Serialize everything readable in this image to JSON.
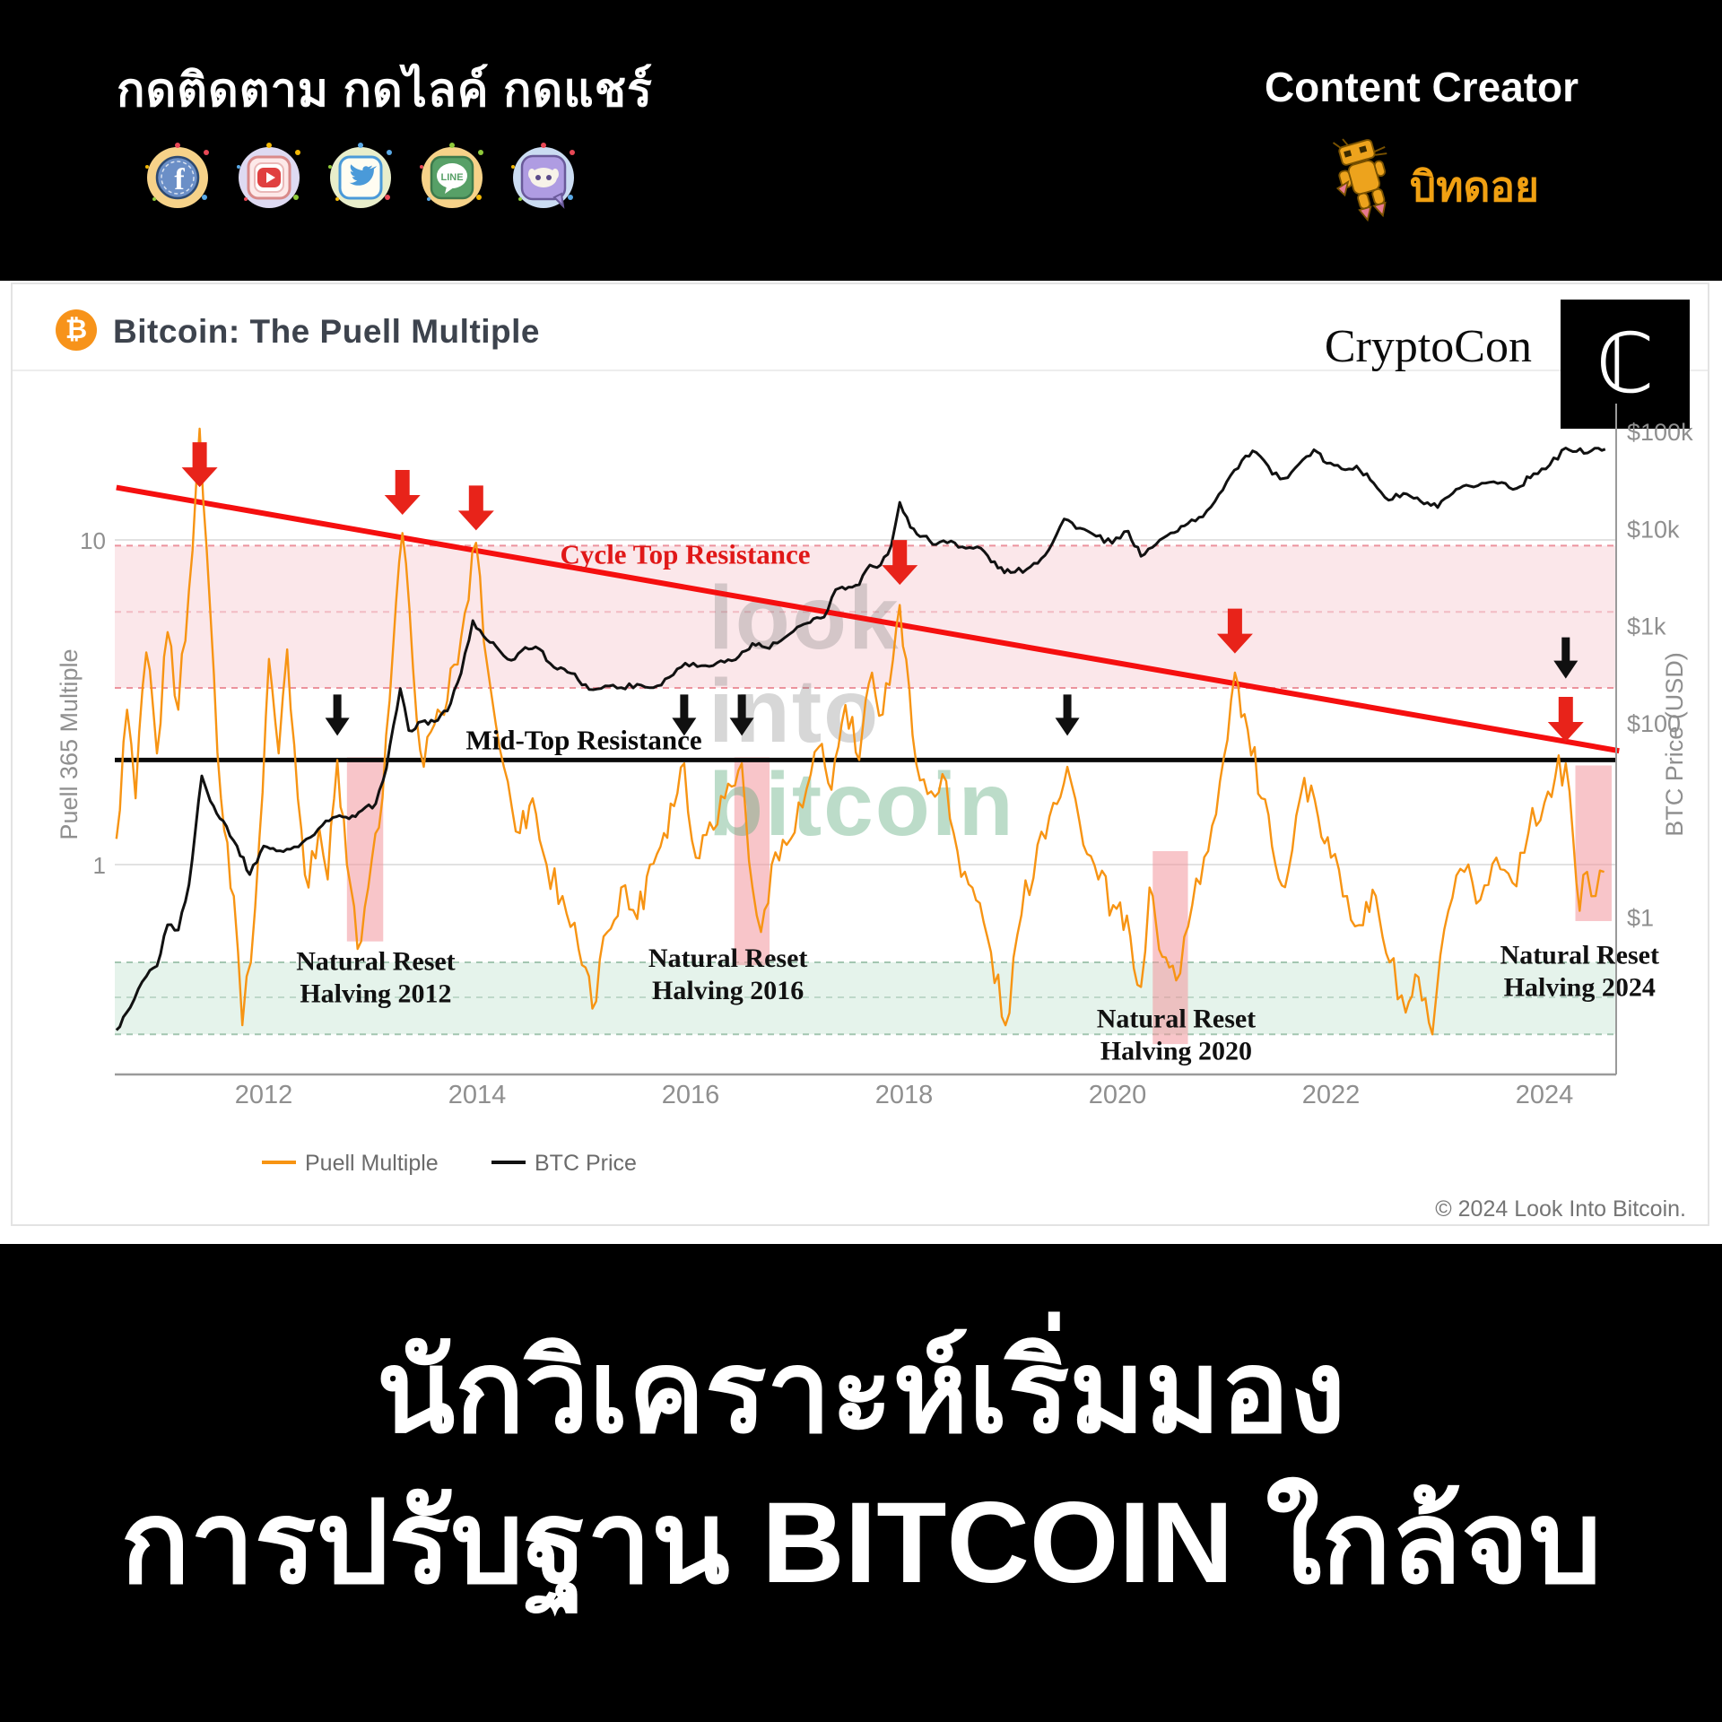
{
  "header": {
    "follow_text": "กดติดตาม กดไลค์ กดแชร์",
    "creator_label": "Content Creator",
    "creator_name": "บิทดอย",
    "social_icons": [
      {
        "name": "facebook-icon",
        "outer": "#f6d289",
        "accent": "#6b8fc7"
      },
      {
        "name": "youtube-icon",
        "outer": "#dedaf2",
        "accent": "#e04040"
      },
      {
        "name": "twitter-icon",
        "outer": "#e9eecb",
        "accent": "#4a9ad9"
      },
      {
        "name": "line-icon",
        "outer": "#f6d289",
        "accent": "#57a067"
      },
      {
        "name": "discord-icon",
        "outer": "#cbdcf2",
        "accent": "#af9ce2"
      }
    ]
  },
  "card": {
    "title": "Bitcoin: The Puell Multiple",
    "title_badge": "₿",
    "brand": "CryptoCon",
    "brand_glyph": "ℂ",
    "copyright": "© 2024 Look Into Bitcoin.",
    "watermark": [
      "look",
      "into",
      "bitcoin"
    ]
  },
  "footer": {
    "line1": "นักวิเคราะห์เริ่มมอง",
    "line2": "การปรับฐาน BITCOIN ใกล้จบ"
  },
  "chart_data": {
    "type": "line",
    "title": "Bitcoin: The Puell Multiple",
    "x_axis": {
      "ticks": [
        "2012",
        "2014",
        "2016",
        "2018",
        "2020",
        "2022",
        "2024"
      ],
      "range_years": [
        2010.6,
        2024.75
      ]
    },
    "y_left": {
      "label": "Puell 365 Multiple",
      "scale": "log",
      "ticks": [
        {
          "text": "10",
          "value": 10
        },
        {
          "text": "1",
          "value": 1
        }
      ]
    },
    "y_right": {
      "label": "BTC Price (USD)",
      "scale": "log",
      "ticks": [
        {
          "text": "$100k",
          "value": 100000
        },
        {
          "text": "$10k",
          "value": 10000
        },
        {
          "text": "$1k",
          "value": 1000
        },
        {
          "text": "$100",
          "value": 100
        },
        {
          "text": "$1",
          "value": 1
        }
      ]
    },
    "legend": [
      {
        "name": "Puell Multiple",
        "color": "#f79413"
      },
      {
        "name": "BTC Price",
        "color": "#111111"
      }
    ],
    "grid_values": [
      10,
      1
    ],
    "zones": {
      "cycle_top": {
        "label": "Cycle Top Resistance",
        "color": "#e01818",
        "band": [
          3.5,
          9.6
        ],
        "mid": 6.0,
        "label_anchor": {
          "year": 2015.95,
          "value": 9.0
        }
      },
      "mid_top": {
        "label": "Mid-Top Resistance",
        "value": 2.1,
        "label_anchor": {
          "year": 2015.0,
          "value": 2.35
        }
      },
      "bottom": {
        "band": [
          0.3,
          0.5
        ],
        "mid": 0.39
      }
    },
    "trendline": {
      "color": "#f50f0f",
      "from": {
        "year": 2010.62,
        "value": 14.5
      },
      "to": {
        "year": 2024.7,
        "value": 2.24
      }
    },
    "halvings": [
      {
        "lines": [
          "Natural Reset",
          "Halving 2012"
        ],
        "years": [
          2012.78,
          2013.12
        ],
        "values": [
          2.14,
          0.58
        ],
        "label": {
          "year": 2013.05,
          "value": 0.45
        }
      },
      {
        "lines": [
          "Natural Reset",
          "Halving 2016"
        ],
        "years": [
          2016.41,
          2016.74
        ],
        "values": [
          2.14,
          0.49
        ],
        "label": {
          "year": 2016.35,
          "value": 0.46
        }
      },
      {
        "lines": [
          "Natural Reset",
          "Halving 2020"
        ],
        "years": [
          2020.33,
          2020.66
        ],
        "values": [
          1.1,
          0.28
        ],
        "label": {
          "year": 2020.55,
          "value": 0.3
        }
      },
      {
        "lines": [
          "Natural Reset",
          "Halving 2024"
        ],
        "years": [
          2024.29,
          2024.63
        ],
        "values": [
          2.02,
          0.67
        ],
        "label": {
          "year": 2024.33,
          "value": 0.47
        }
      }
    ],
    "red_arrows": [
      {
        "year": 2011.4,
        "value": 14.0
      },
      {
        "year": 2013.3,
        "value": 11.5
      },
      {
        "year": 2013.99,
        "value": 10.3
      },
      {
        "year": 2017.96,
        "value": 7.0
      },
      {
        "year": 2021.1,
        "value": 4.3
      },
      {
        "year": 2024.2,
        "value": 2.3
      }
    ],
    "black_arrows": [
      {
        "year": 2012.69,
        "value": 2.4
      },
      {
        "year": 2015.94,
        "value": 2.4
      },
      {
        "year": 2016.48,
        "value": 2.4
      },
      {
        "year": 2019.53,
        "value": 2.4
      },
      {
        "year": 2024.2,
        "value": 3.6
      }
    ],
    "series": [
      {
        "name": "Puell Multiple",
        "color": "#f79413",
        "width": 2.4,
        "noise": 0.055,
        "axis": "left",
        "points": [
          [
            2010.62,
            1.2
          ],
          [
            2010.72,
            3.0
          ],
          [
            2010.8,
            1.6
          ],
          [
            2010.9,
            4.5
          ],
          [
            2011.0,
            2.2
          ],
          [
            2011.1,
            5.2
          ],
          [
            2011.2,
            3.0
          ],
          [
            2011.3,
            7.0
          ],
          [
            2011.4,
            22
          ],
          [
            2011.5,
            6.0
          ],
          [
            2011.6,
            1.6
          ],
          [
            2011.72,
            0.8
          ],
          [
            2011.8,
            0.32
          ],
          [
            2011.88,
            0.5
          ],
          [
            2011.96,
            1.2
          ],
          [
            2012.05,
            4.3
          ],
          [
            2012.14,
            2.2
          ],
          [
            2012.22,
            4.6
          ],
          [
            2012.32,
            1.6
          ],
          [
            2012.42,
            0.85
          ],
          [
            2012.52,
            1.3
          ],
          [
            2012.6,
            0.9
          ],
          [
            2012.69,
            2.1
          ],
          [
            2012.78,
            1.0
          ],
          [
            2012.88,
            0.55
          ],
          [
            2012.98,
            0.85
          ],
          [
            2013.08,
            1.3
          ],
          [
            2013.18,
            3.2
          ],
          [
            2013.3,
            10.5
          ],
          [
            2013.4,
            4.0
          ],
          [
            2013.5,
            2.0
          ],
          [
            2013.6,
            2.7
          ],
          [
            2013.72,
            3.2
          ],
          [
            2013.85,
            5.0
          ],
          [
            2013.99,
            9.8
          ],
          [
            2014.1,
            4.0
          ],
          [
            2014.25,
            2.0
          ],
          [
            2014.4,
            1.25
          ],
          [
            2014.52,
            1.6
          ],
          [
            2014.65,
            1.0
          ],
          [
            2014.8,
            0.8
          ],
          [
            2014.95,
            0.55
          ],
          [
            2015.08,
            0.36
          ],
          [
            2015.22,
            0.62
          ],
          [
            2015.35,
            0.85
          ],
          [
            2015.5,
            0.68
          ],
          [
            2015.62,
            1.0
          ],
          [
            2015.75,
            1.25
          ],
          [
            2015.94,
            2.05
          ],
          [
            2016.05,
            1.05
          ],
          [
            2016.18,
            1.35
          ],
          [
            2016.32,
            1.6
          ],
          [
            2016.48,
            2.05
          ],
          [
            2016.58,
            0.85
          ],
          [
            2016.66,
            0.62
          ],
          [
            2016.76,
            1.0
          ],
          [
            2016.9,
            1.15
          ],
          [
            2017.05,
            1.5
          ],
          [
            2017.2,
            2.3
          ],
          [
            2017.32,
            1.7
          ],
          [
            2017.45,
            3.1
          ],
          [
            2017.58,
            2.1
          ],
          [
            2017.7,
            3.9
          ],
          [
            2017.8,
            2.9
          ],
          [
            2017.96,
            6.3
          ],
          [
            2018.08,
            2.5
          ],
          [
            2018.22,
            1.65
          ],
          [
            2018.36,
            1.9
          ],
          [
            2018.5,
            1.1
          ],
          [
            2018.64,
            0.85
          ],
          [
            2018.78,
            0.6
          ],
          [
            2018.95,
            0.32
          ],
          [
            2019.1,
            0.7
          ],
          [
            2019.25,
            1.15
          ],
          [
            2019.4,
            1.55
          ],
          [
            2019.53,
            2.0
          ],
          [
            2019.68,
            1.15
          ],
          [
            2019.82,
            0.9
          ],
          [
            2019.96,
            0.75
          ],
          [
            2020.12,
            0.6
          ],
          [
            2020.22,
            0.42
          ],
          [
            2020.3,
            0.85
          ],
          [
            2020.42,
            0.52
          ],
          [
            2020.55,
            0.44
          ],
          [
            2020.7,
            0.75
          ],
          [
            2020.85,
            1.1
          ],
          [
            2020.96,
            1.8
          ],
          [
            2021.1,
            3.9
          ],
          [
            2021.22,
            2.6
          ],
          [
            2021.35,
            1.6
          ],
          [
            2021.48,
            1.0
          ],
          [
            2021.6,
            0.95
          ],
          [
            2021.75,
            1.85
          ],
          [
            2021.88,
            1.4
          ],
          [
            2022.0,
            1.05
          ],
          [
            2022.15,
            0.8
          ],
          [
            2022.3,
            0.65
          ],
          [
            2022.42,
            0.8
          ],
          [
            2022.55,
            0.5
          ],
          [
            2022.7,
            0.35
          ],
          [
            2022.82,
            0.45
          ],
          [
            2022.95,
            0.3
          ],
          [
            2023.1,
            0.72
          ],
          [
            2023.25,
            0.95
          ],
          [
            2023.4,
            0.78
          ],
          [
            2023.55,
            1.05
          ],
          [
            2023.7,
            0.88
          ],
          [
            2023.85,
            1.25
          ],
          [
            2024.0,
            1.55
          ],
          [
            2024.1,
            1.85
          ],
          [
            2024.2,
            2.05
          ],
          [
            2024.27,
            1.2
          ],
          [
            2024.33,
            0.72
          ],
          [
            2024.4,
            0.95
          ],
          [
            2024.48,
            0.8
          ],
          [
            2024.56,
            0.95
          ]
        ]
      },
      {
        "name": "BTC Price",
        "color": "#111111",
        "width": 3,
        "noise": 0.03,
        "axis": "right",
        "points": [
          [
            2010.62,
            0.07
          ],
          [
            2010.75,
            0.12
          ],
          [
            2010.9,
            0.25
          ],
          [
            2011.0,
            0.32
          ],
          [
            2011.1,
            0.85
          ],
          [
            2011.2,
            0.75
          ],
          [
            2011.3,
            2.2
          ],
          [
            2011.42,
            29
          ],
          [
            2011.5,
            16
          ],
          [
            2011.62,
            10
          ],
          [
            2011.75,
            5.5
          ],
          [
            2011.87,
            2.8
          ],
          [
            2012.0,
            5.5
          ],
          [
            2012.12,
            4.9
          ],
          [
            2012.25,
            5.1
          ],
          [
            2012.4,
            6.5
          ],
          [
            2012.55,
            9
          ],
          [
            2012.68,
            11
          ],
          [
            2012.8,
            10.5
          ],
          [
            2012.92,
            12.8
          ],
          [
            2013.05,
            15
          ],
          [
            2013.15,
            35
          ],
          [
            2013.28,
            230
          ],
          [
            2013.36,
            85
          ],
          [
            2013.48,
            105
          ],
          [
            2013.6,
            105
          ],
          [
            2013.72,
            135
          ],
          [
            2013.85,
            330
          ],
          [
            2013.96,
            1150
          ],
          [
            2014.06,
            800
          ],
          [
            2014.18,
            620
          ],
          [
            2014.32,
            450
          ],
          [
            2014.45,
            610
          ],
          [
            2014.58,
            590
          ],
          [
            2014.72,
            380
          ],
          [
            2014.88,
            330
          ],
          [
            2015.05,
            225
          ],
          [
            2015.2,
            245
          ],
          [
            2015.35,
            235
          ],
          [
            2015.5,
            255
          ],
          [
            2015.65,
            235
          ],
          [
            2015.8,
            300
          ],
          [
            2015.95,
            420
          ],
          [
            2016.1,
            395
          ],
          [
            2016.25,
            425
          ],
          [
            2016.42,
            455
          ],
          [
            2016.58,
            670
          ],
          [
            2016.7,
            610
          ],
          [
            2016.85,
            720
          ],
          [
            2017.0,
            990
          ],
          [
            2017.12,
            1100
          ],
          [
            2017.25,
            1250
          ],
          [
            2017.36,
            2400
          ],
          [
            2017.48,
            2550
          ],
          [
            2017.58,
            2700
          ],
          [
            2017.68,
            4300
          ],
          [
            2017.78,
            4300
          ],
          [
            2017.88,
            6800
          ],
          [
            2017.96,
            19000
          ],
          [
            2018.06,
            10500
          ],
          [
            2018.18,
            8500
          ],
          [
            2018.3,
            7000
          ],
          [
            2018.44,
            7600
          ],
          [
            2018.58,
            6400
          ],
          [
            2018.72,
            6400
          ],
          [
            2018.88,
            4000
          ],
          [
            2019.0,
            3600
          ],
          [
            2019.15,
            3900
          ],
          [
            2019.32,
            5400
          ],
          [
            2019.5,
            12800
          ],
          [
            2019.65,
            10300
          ],
          [
            2019.8,
            8500
          ],
          [
            2019.95,
            7200
          ],
          [
            2020.1,
            9600
          ],
          [
            2020.22,
            5300
          ],
          [
            2020.36,
            7000
          ],
          [
            2020.5,
            9200
          ],
          [
            2020.66,
            11500
          ],
          [
            2020.8,
            13500
          ],
          [
            2020.95,
            23000
          ],
          [
            2021.06,
            36000
          ],
          [
            2021.2,
            57000
          ],
          [
            2021.3,
            62000
          ],
          [
            2021.45,
            37000
          ],
          [
            2021.56,
            33500
          ],
          [
            2021.7,
            47000
          ],
          [
            2021.84,
            66000
          ],
          [
            2021.96,
            48000
          ],
          [
            2022.1,
            42000
          ],
          [
            2022.24,
            45000
          ],
          [
            2022.4,
            30000
          ],
          [
            2022.54,
            20000
          ],
          [
            2022.68,
            23500
          ],
          [
            2022.84,
            19500
          ],
          [
            2023.0,
            16800
          ],
          [
            2023.14,
            23500
          ],
          [
            2023.3,
            28000
          ],
          [
            2023.45,
            30000
          ],
          [
            2023.6,
            30500
          ],
          [
            2023.74,
            26500
          ],
          [
            2023.9,
            37500
          ],
          [
            2024.05,
            46000
          ],
          [
            2024.2,
            69000
          ],
          [
            2024.3,
            63500
          ],
          [
            2024.44,
            64500
          ],
          [
            2024.57,
            67000
          ]
        ]
      }
    ]
  }
}
